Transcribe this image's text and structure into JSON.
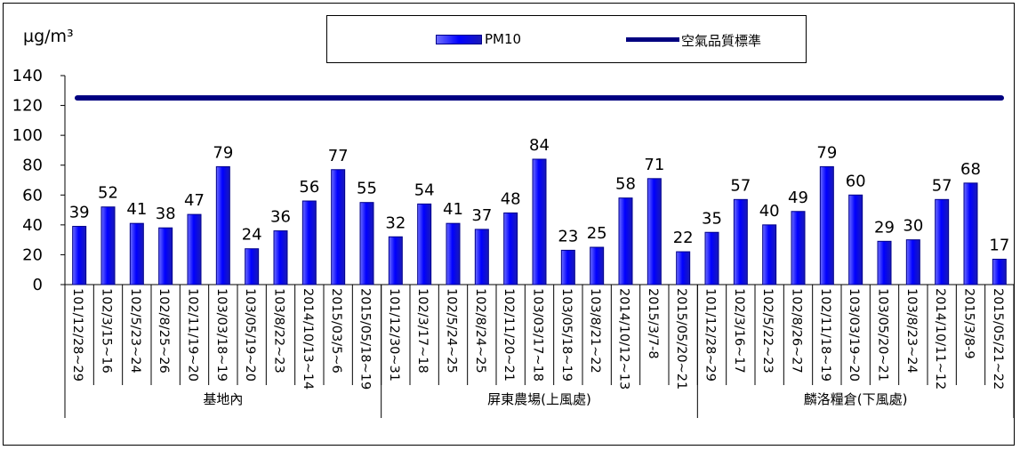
{
  "chart_data": {
    "type": "bar",
    "unit_label": "µg/m³",
    "ylim": [
      0,
      140
    ],
    "yticks": [
      0,
      20,
      40,
      60,
      80,
      100,
      120,
      140
    ],
    "legend": {
      "placement": "top",
      "bar_label": "PM10",
      "line_label": "空氣品質標準"
    },
    "standard_value": 125,
    "colors": {
      "bar": "#0000ff",
      "bar_edge": "#00008b",
      "standard_line": "#000080"
    },
    "series": [
      {
        "name": "PM10",
        "values": [
          39,
          52,
          41,
          38,
          47,
          79,
          24,
          36,
          56,
          77,
          55,
          32,
          54,
          41,
          37,
          48,
          84,
          23,
          25,
          58,
          71,
          22,
          35,
          57,
          40,
          49,
          79,
          60,
          29,
          30,
          57,
          68,
          17
        ]
      },
      {
        "name": "空氣品質標準",
        "value": 125
      }
    ],
    "categories": [
      "101/12/28~29",
      "102/3/15~16",
      "102/5/23~24",
      "102/8/25~26",
      "102/11/19~20",
      "103/03/18~19",
      "103/05/19~20",
      "103/8/22~23",
      "2014/10/13~14",
      "2015/03/5~6",
      "2015/05/18~19",
      "101/12/30~31",
      "102/3/17~18",
      "102/5/24~25",
      "102/8/24~25",
      "102/11/20~21",
      "103/03/17~18",
      "103/05/18~19",
      "103/8/21~22",
      "2014/10/12~13",
      "2015/3/7-8",
      "2015/05/20~21",
      "101/12/28~29",
      "102/3/16~17",
      "102/5/22~23",
      "102/8/26~27",
      "102/11/18~19",
      "103/03/19~20",
      "103/05/20~21",
      "103/8/23~24",
      "2014/10/11~12",
      "2015/3/8-9",
      "2015/05/21~22"
    ],
    "groups": [
      {
        "label": "基地內",
        "count": 11
      },
      {
        "label": "屏東農場(上風處)",
        "count": 11
      },
      {
        "label": "麟洛糧倉(下風處)",
        "count": 11
      }
    ]
  }
}
